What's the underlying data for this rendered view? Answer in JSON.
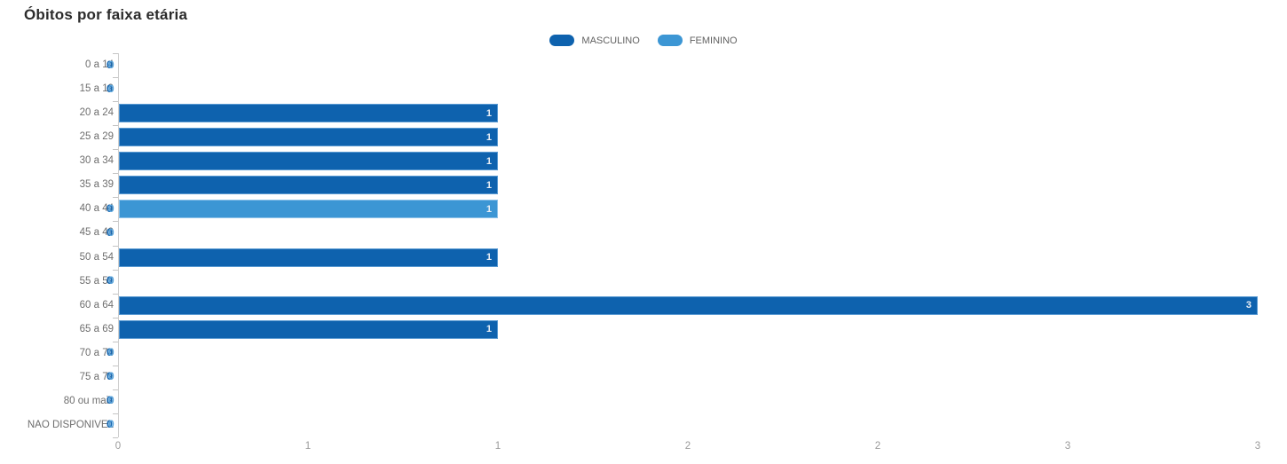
{
  "title": "Óbitos por faixa etária",
  "legend": {
    "items": [
      {
        "label": "MASCULINO",
        "color": "#0e62ae"
      },
      {
        "label": "FEMININO",
        "color": "#3c96d4"
      }
    ]
  },
  "chart_data": {
    "type": "bar",
    "orientation": "horizontal",
    "title": "Óbitos por faixa etária",
    "categories": [
      "0 a 14",
      "15 a 19",
      "20 a 24",
      "25 a 29",
      "30 a 34",
      "35 a 39",
      "40 a 44",
      "45 a 49",
      "50 a 54",
      "55 a 59",
      "60 a 64",
      "65 a 69",
      "70 a 74",
      "75 a 79",
      "80 ou mais",
      "NAO DISPONIVEL"
    ],
    "series": [
      {
        "name": "MASCULINO",
        "color": "#0e62ae",
        "border_color": "#5a9ad2",
        "values": [
          0,
          0,
          1,
          1,
          1,
          1,
          0,
          0,
          1,
          0,
          3,
          1,
          0,
          0,
          0,
          0
        ]
      },
      {
        "name": "FEMININO",
        "color": "#3c96d4",
        "border_color": "#8ec2e9",
        "values": [
          0,
          0,
          0,
          0,
          0,
          0,
          1,
          0,
          0,
          0,
          0,
          0,
          0,
          0,
          0,
          0
        ]
      }
    ],
    "xlim": [
      0,
      3
    ],
    "x_ticks": {
      "values": [
        0,
        0.5,
        1,
        1.5,
        2,
        2.5,
        3
      ],
      "labels": [
        "0",
        "1",
        "1",
        "2",
        "2",
        "3",
        "3"
      ]
    },
    "value_labels_shown": true,
    "legend_position": "top-center",
    "grid": false
  },
  "colors": {
    "background": "#ffffff",
    "title": "#2b2b2b",
    "legend_label": "#616161",
    "axis": "#cfcfcf",
    "category_label": "#6e6e6e",
    "x_tick_label": "#9b9b9b",
    "bar_value_label": "#e9eef5",
    "zero_label_dark": "#1667b1",
    "zero_label_light": "#58a4dd"
  }
}
